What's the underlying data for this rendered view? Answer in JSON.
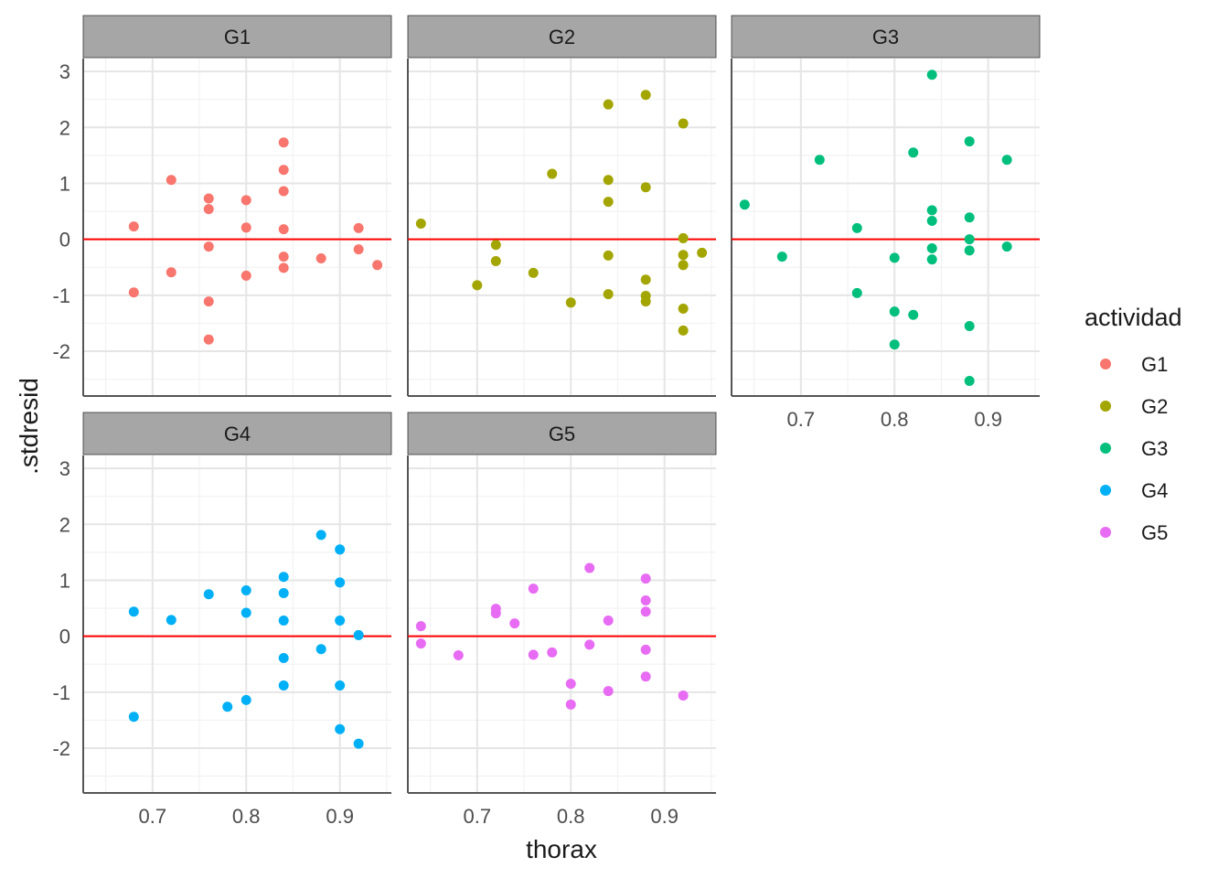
{
  "chart_data": {
    "type": "scatter",
    "xlabel": "thorax",
    "ylabel": ".stdresid",
    "xlim": [
      0.626,
      0.955
    ],
    "ylim": [
      -2.8,
      3.23
    ],
    "xticks": [
      0.7,
      0.8,
      0.9
    ],
    "xtick_labels": [
      "0.7",
      "0.8",
      "0.9"
    ],
    "yticks": [
      -2,
      -1,
      0,
      1,
      2,
      3
    ],
    "ytick_labels": [
      "-2",
      "-1",
      "0",
      "1",
      "2",
      "3"
    ],
    "hline": {
      "y": 0,
      "color": "#FF0000"
    },
    "grid": true,
    "legend": {
      "title": "actividad",
      "placement": "right",
      "entries": [
        "G1",
        "G2",
        "G3",
        "G4",
        "G5"
      ]
    },
    "panels": [
      {
        "name": "G1",
        "color": "#F8766D",
        "points": [
          [
            0.68,
            0.23
          ],
          [
            0.72,
            1.06
          ],
          [
            0.72,
            -0.59
          ],
          [
            0.68,
            -0.95
          ],
          [
            0.76,
            0.73
          ],
          [
            0.76,
            0.54
          ],
          [
            0.76,
            -0.13
          ],
          [
            0.76,
            -1.11
          ],
          [
            0.76,
            -1.79
          ],
          [
            0.8,
            0.7
          ],
          [
            0.8,
            0.21
          ],
          [
            0.8,
            -0.65
          ],
          [
            0.84,
            1.73
          ],
          [
            0.84,
            1.24
          ],
          [
            0.84,
            0.86
          ],
          [
            0.84,
            0.18
          ],
          [
            0.84,
            -0.31
          ],
          [
            0.84,
            -0.51
          ],
          [
            0.88,
            -0.34
          ],
          [
            0.92,
            0.2
          ],
          [
            0.92,
            -0.18
          ],
          [
            0.94,
            -0.46
          ]
        ]
      },
      {
        "name": "G2",
        "color": "#A3A500",
        "points": [
          [
            0.64,
            0.28
          ],
          [
            0.7,
            -0.82
          ],
          [
            0.72,
            -0.1
          ],
          [
            0.72,
            -0.39
          ],
          [
            0.76,
            -0.6
          ],
          [
            0.78,
            1.17
          ],
          [
            0.8,
            -1.13
          ],
          [
            0.84,
            2.41
          ],
          [
            0.84,
            1.06
          ],
          [
            0.84,
            0.67
          ],
          [
            0.84,
            -0.29
          ],
          [
            0.84,
            -0.98
          ],
          [
            0.88,
            2.58
          ],
          [
            0.88,
            0.93
          ],
          [
            0.88,
            -0.72
          ],
          [
            0.88,
            -1.01
          ],
          [
            0.88,
            -1.11
          ],
          [
            0.92,
            2.07
          ],
          [
            0.92,
            0.02
          ],
          [
            0.92,
            -0.28
          ],
          [
            0.92,
            -0.46
          ],
          [
            0.92,
            -1.24
          ],
          [
            0.92,
            -1.63
          ],
          [
            0.94,
            -0.24
          ]
        ]
      },
      {
        "name": "G3",
        "color": "#00BF7D",
        "points": [
          [
            0.64,
            0.62
          ],
          [
            0.68,
            -0.31
          ],
          [
            0.72,
            1.42
          ],
          [
            0.76,
            0.2
          ],
          [
            0.76,
            -0.96
          ],
          [
            0.8,
            -0.33
          ],
          [
            0.8,
            -1.29
          ],
          [
            0.8,
            -1.88
          ],
          [
            0.82,
            1.55
          ],
          [
            0.82,
            -1.35
          ],
          [
            0.84,
            2.94
          ],
          [
            0.84,
            0.52
          ],
          [
            0.84,
            0.33
          ],
          [
            0.84,
            -0.16
          ],
          [
            0.84,
            -0.36
          ],
          [
            0.88,
            1.75
          ],
          [
            0.88,
            0.39
          ],
          [
            0.88,
            0.0
          ],
          [
            0.88,
            -0.2
          ],
          [
            0.88,
            -1.55
          ],
          [
            0.88,
            -2.53
          ],
          [
            0.92,
            1.42
          ],
          [
            0.92,
            -0.13
          ]
        ]
      },
      {
        "name": "G4",
        "color": "#00B0F6",
        "points": [
          [
            0.68,
            0.44
          ],
          [
            0.72,
            0.29
          ],
          [
            0.68,
            -1.44
          ],
          [
            0.76,
            0.75
          ],
          [
            0.78,
            -1.26
          ],
          [
            0.8,
            0.82
          ],
          [
            0.8,
            0.42
          ],
          [
            0.8,
            -1.14
          ],
          [
            0.84,
            1.06
          ],
          [
            0.84,
            0.77
          ],
          [
            0.84,
            0.28
          ],
          [
            0.84,
            -0.39
          ],
          [
            0.84,
            -0.88
          ],
          [
            0.88,
            1.81
          ],
          [
            0.88,
            -0.23
          ],
          [
            0.9,
            1.55
          ],
          [
            0.9,
            0.96
          ],
          [
            0.9,
            0.28
          ],
          [
            0.9,
            -0.88
          ],
          [
            0.9,
            -1.66
          ],
          [
            0.92,
            0.02
          ],
          [
            0.92,
            -1.92
          ]
        ]
      },
      {
        "name": "G5",
        "color": "#E76BF3",
        "points": [
          [
            0.64,
            0.18
          ],
          [
            0.64,
            -0.13
          ],
          [
            0.68,
            -0.34
          ],
          [
            0.72,
            0.49
          ],
          [
            0.72,
            0.41
          ],
          [
            0.74,
            0.23
          ],
          [
            0.76,
            0.85
          ],
          [
            0.76,
            -0.33
          ],
          [
            0.78,
            -0.29
          ],
          [
            0.8,
            -0.85
          ],
          [
            0.8,
            -1.22
          ],
          [
            0.82,
            1.22
          ],
          [
            0.82,
            -0.15
          ],
          [
            0.84,
            0.28
          ],
          [
            0.84,
            -0.98
          ],
          [
            0.88,
            1.03
          ],
          [
            0.88,
            0.64
          ],
          [
            0.88,
            0.44
          ],
          [
            0.88,
            -0.24
          ],
          [
            0.88,
            -0.72
          ],
          [
            0.92,
            -1.06
          ]
        ]
      }
    ]
  }
}
